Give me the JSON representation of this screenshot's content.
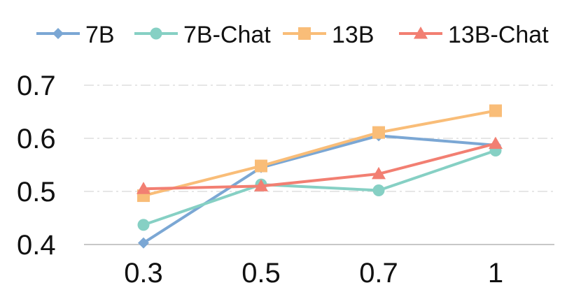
{
  "chart_data": {
    "type": "line",
    "title": "",
    "xlabel": "",
    "ylabel": "",
    "categories": [
      "0.3",
      "0.5",
      "0.7",
      "1"
    ],
    "y_ticks": [
      "0.4",
      "0.5",
      "0.6",
      "0.7"
    ],
    "ylim": [
      0.4,
      0.7
    ],
    "grid": "horizontal dash-dot",
    "legend_position": "top",
    "series": [
      {
        "name": "7B",
        "marker": "diamond",
        "color": "#7ba7d4",
        "values": [
          0.403,
          0.545,
          0.605,
          0.587
        ]
      },
      {
        "name": "7B-Chat",
        "marker": "circle",
        "color": "#86d0c4",
        "values": [
          0.437,
          0.513,
          0.502,
          0.577
        ]
      },
      {
        "name": "13B",
        "marker": "square",
        "color": "#f9bd78",
        "values": [
          0.492,
          0.548,
          0.611,
          0.652
        ]
      },
      {
        "name": "13B-Chat",
        "marker": "triangle",
        "color": "#f27f72",
        "values": [
          0.505,
          0.51,
          0.533,
          0.59
        ]
      }
    ]
  }
}
